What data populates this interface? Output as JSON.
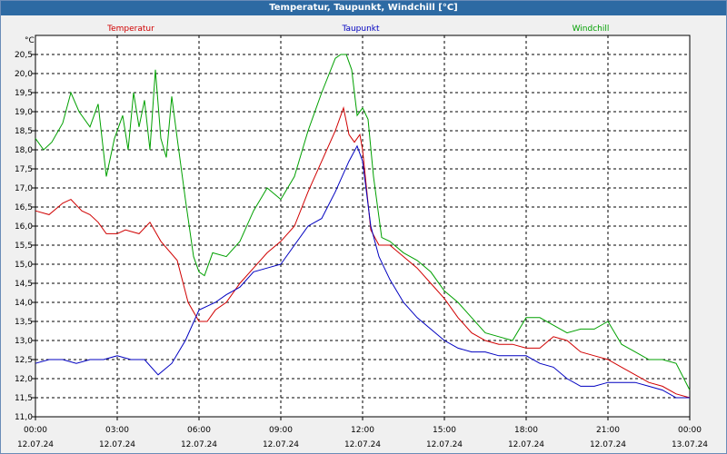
{
  "window": {
    "title": "Temperatur, Taupunkt, Windchill [°C]"
  },
  "chart_data": {
    "type": "line",
    "title": "Temperatur, Taupunkt, Windchill [°C]",
    "ylabel": "°C",
    "ylim": [
      11.0,
      21.0
    ],
    "y_ticks": [
      "11,0",
      "11,5",
      "12,0",
      "12,5",
      "13,0",
      "13,5",
      "14,0",
      "14,5",
      "15,0",
      "15,5",
      "16,0",
      "16,5",
      "17,0",
      "17,5",
      "18,0",
      "18,5",
      "19,0",
      "19,5",
      "20,0",
      "20,5"
    ],
    "x_ticks": [
      {
        "time": "00:00",
        "date": "12.07.24"
      },
      {
        "time": "03:00",
        "date": "12.07.24"
      },
      {
        "time": "06:00",
        "date": "12.07.24"
      },
      {
        "time": "09:00",
        "date": "12.07.24"
      },
      {
        "time": "12:00",
        "date": "12.07.24"
      },
      {
        "time": "15:00",
        "date": "12.07.24"
      },
      {
        "time": "18:00",
        "date": "12.07.24"
      },
      {
        "time": "21:00",
        "date": "12.07.24"
      },
      {
        "time": "00:00",
        "date": "13.07.24"
      }
    ],
    "xlim_hours": [
      0,
      24
    ],
    "grid": true,
    "legend_position": "top",
    "series": [
      {
        "name": "Temperatur",
        "color": "#d00000",
        "x": [
          0,
          0.5,
          1,
          1.3,
          1.7,
          2,
          2.3,
          2.6,
          3,
          3.3,
          3.8,
          4.2,
          4.6,
          5.2,
          5.6,
          6,
          6.3,
          6.6,
          7,
          7.5,
          8,
          8.5,
          9,
          9.5,
          10,
          10.5,
          11,
          11.3,
          11.5,
          11.7,
          11.9,
          12,
          12.3,
          12.6,
          13,
          13.5,
          14,
          14.5,
          15,
          15.5,
          16,
          16.5,
          17,
          17.5,
          18,
          18.5,
          19,
          19.5,
          20,
          20.5,
          21,
          21.5,
          22,
          22.5,
          23,
          23.5,
          24
        ],
        "y": [
          16.4,
          16.3,
          16.6,
          16.7,
          16.4,
          16.3,
          16.1,
          15.8,
          15.8,
          15.9,
          15.8,
          16.1,
          15.6,
          15.1,
          14.0,
          13.5,
          13.5,
          13.8,
          14.0,
          14.5,
          14.9,
          15.3,
          15.6,
          16.0,
          16.9,
          17.7,
          18.5,
          19.1,
          18.4,
          18.2,
          18.4,
          18.0,
          15.9,
          15.5,
          15.5,
          15.2,
          14.9,
          14.5,
          14.1,
          13.6,
          13.2,
          13.0,
          12.9,
          12.9,
          12.8,
          12.8,
          13.1,
          13.0,
          12.7,
          12.6,
          12.5,
          12.3,
          12.1,
          11.9,
          11.8,
          11.6,
          11.5
        ]
      },
      {
        "name": "Taupunkt",
        "color": "#0000c0",
        "x": [
          0,
          0.5,
          1,
          1.5,
          2,
          2.5,
          3,
          3.5,
          4,
          4.5,
          5,
          5.5,
          6,
          6.3,
          6.6,
          7,
          7.5,
          8,
          8.5,
          9,
          9.5,
          10,
          10.5,
          11,
          11.5,
          11.8,
          12,
          12.3,
          12.6,
          13,
          13.5,
          14,
          14.5,
          15,
          15.5,
          16,
          16.5,
          17,
          17.5,
          18,
          18.5,
          19,
          19.5,
          20,
          20.5,
          21,
          21.5,
          22,
          22.5,
          23,
          23.5,
          24
        ],
        "y": [
          12.4,
          12.5,
          12.5,
          12.4,
          12.5,
          12.5,
          12.6,
          12.5,
          12.5,
          12.1,
          12.4,
          13.0,
          13.8,
          13.9,
          14.0,
          14.2,
          14.4,
          14.8,
          14.9,
          15.0,
          15.5,
          16.0,
          16.2,
          16.9,
          17.7,
          18.1,
          17.7,
          16.0,
          15.2,
          14.6,
          14.0,
          13.6,
          13.3,
          13.0,
          12.8,
          12.7,
          12.7,
          12.6,
          12.6,
          12.6,
          12.4,
          12.3,
          12.0,
          11.8,
          11.8,
          11.9,
          11.9,
          11.9,
          11.8,
          11.7,
          11.5,
          11.5
        ]
      },
      {
        "name": "Windchill",
        "color": "#00a000",
        "x": [
          0,
          0.3,
          0.6,
          1,
          1.3,
          1.6,
          2,
          2.3,
          2.6,
          2.9,
          3.2,
          3.4,
          3.6,
          3.8,
          4,
          4.2,
          4.4,
          4.6,
          4.8,
          5,
          5.2,
          5.5,
          5.8,
          6,
          6.2,
          6.5,
          7,
          7.5,
          8,
          8.5,
          9,
          9.5,
          10,
          10.5,
          11,
          11.2,
          11.4,
          11.6,
          11.8,
          12,
          12.2,
          12.4,
          12.7,
          13,
          13.5,
          14,
          14.5,
          15,
          15.5,
          16,
          16.5,
          17,
          17.5,
          18,
          18.5,
          19,
          19.5,
          20,
          20.5,
          21,
          21.5,
          22,
          22.5,
          23,
          23.5,
          24
        ],
        "y": [
          18.3,
          18.0,
          18.2,
          18.7,
          19.5,
          19.0,
          18.6,
          19.2,
          17.3,
          18.3,
          18.9,
          18.0,
          19.5,
          18.6,
          19.3,
          18.0,
          20.1,
          18.3,
          17.8,
          19.4,
          18.3,
          16.7,
          15.2,
          14.8,
          14.7,
          15.3,
          15.2,
          15.6,
          16.4,
          17.0,
          16.7,
          17.3,
          18.5,
          19.5,
          20.4,
          20.5,
          20.5,
          20.1,
          18.9,
          19.1,
          18.8,
          17.3,
          15.7,
          15.6,
          15.3,
          15.1,
          14.8,
          14.3,
          14.0,
          13.6,
          13.2,
          13.1,
          13.0,
          13.6,
          13.6,
          13.4,
          13.2,
          13.3,
          13.3,
          13.5,
          12.9,
          12.7,
          12.5,
          12.5,
          12.4,
          11.7
        ]
      }
    ]
  }
}
